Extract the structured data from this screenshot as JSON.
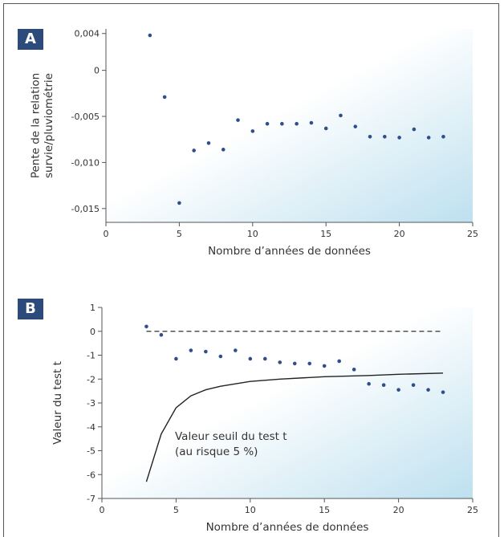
{
  "panels": [
    {
      "label": "A",
      "chart_data": {
        "type": "scatter",
        "xlabel": "Nombre d’années de données",
        "ylabel_lines": [
          "Pente de la relation",
          "survie/pluviométrie"
        ],
        "xlim": [
          0,
          25
        ],
        "ylim": [
          -0.0165,
          0.0045
        ],
        "xticks": [
          0,
          5,
          10,
          15,
          20,
          25
        ],
        "yticks": [
          0.004,
          0,
          -0.005,
          -0.01,
          -0.015
        ],
        "ytick_labels": [
          "0,004",
          "0",
          "-0,005",
          "-0,010",
          "-0,015"
        ],
        "point_color": "#2f4f8a",
        "series": [
          {
            "x": [
              3,
              4,
              5,
              6,
              7,
              8,
              9,
              10,
              11,
              12,
              13,
              14,
              15,
              16,
              17,
              18,
              19,
              20,
              21,
              22,
              23
            ],
            "y": [
              0.0038,
              -0.0029,
              -0.0144,
              -0.0087,
              -0.0079,
              -0.0086,
              -0.0054,
              -0.0066,
              -0.0058,
              -0.0058,
              -0.0058,
              -0.0057,
              -0.0063,
              -0.0049,
              -0.0061,
              -0.0072,
              -0.0072,
              -0.0073,
              -0.0064,
              -0.0073,
              -0.0072
            ]
          }
        ]
      }
    },
    {
      "label": "B",
      "chart_data": {
        "type": "scatter",
        "xlabel": "Nombre d’années de données",
        "ylabel": "Valeur du test t",
        "xlim": [
          0,
          25
        ],
        "ylim": [
          -7,
          1
        ],
        "xticks": [
          0,
          5,
          10,
          15,
          20,
          25
        ],
        "yticks": [
          1,
          0,
          -1,
          -2,
          -3,
          -4,
          -5,
          -6,
          -7
        ],
        "point_color": "#2f4f8a",
        "series": [
          {
            "x": [
              3,
              4,
              5,
              6,
              7,
              8,
              9,
              10,
              11,
              12,
              13,
              14,
              15,
              16,
              17,
              18,
              19,
              20,
              21,
              22,
              23
            ],
            "y": [
              0.2,
              -0.15,
              -1.15,
              -0.8,
              -0.85,
              -1.05,
              -0.8,
              -1.15,
              -1.15,
              -1.3,
              -1.35,
              -1.35,
              -1.45,
              -1.25,
              -1.6,
              -2.2,
              -2.25,
              -2.45,
              -2.25,
              -2.45,
              -2.55
            ]
          }
        ],
        "reference_line": {
          "y": 0,
          "x": [
            3,
            23
          ],
          "style": "dashed"
        },
        "threshold_curve": {
          "x": [
            3,
            4,
            5,
            6,
            7,
            8,
            10,
            12,
            15,
            18,
            20,
            23
          ],
          "y": [
            -6.3,
            -4.3,
            -3.2,
            -2.7,
            -2.45,
            -2.3,
            -2.1,
            -2.0,
            -1.9,
            -1.85,
            -1.8,
            -1.75
          ]
        },
        "annotation_lines": [
          "Valeur seuil du test t",
          "(au risque 5 %)"
        ]
      }
    }
  ]
}
